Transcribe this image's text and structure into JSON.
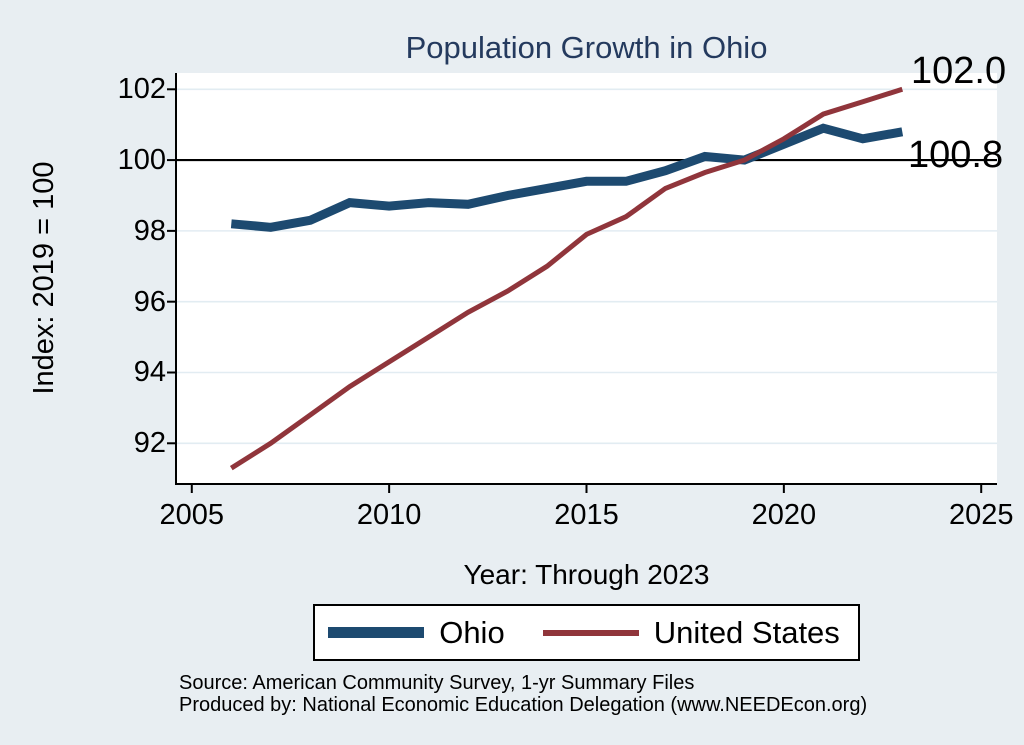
{
  "header": {
    "title": "Population Growth in Ohio"
  },
  "chart_data": {
    "type": "line",
    "title": "Population Growth in Ohio",
    "xlabel": "Year: Through 2023",
    "ylabel": "Index: 2019 = 100",
    "x": [
      2006,
      2007,
      2008,
      2009,
      2010,
      2011,
      2012,
      2013,
      2014,
      2015,
      2016,
      2017,
      2018,
      2019,
      2020,
      2021,
      2022,
      2023
    ],
    "series": [
      {
        "name": "Ohio",
        "color": "#1d4a70",
        "line_width": 9,
        "values": [
          98.2,
          98.1,
          98.3,
          98.8,
          98.7,
          98.8,
          98.75,
          99.0,
          99.2,
          99.4,
          99.4,
          99.7,
          100.1,
          100.0,
          100.45,
          100.9,
          100.6,
          100.8
        ]
      },
      {
        "name": "United States",
        "color": "#90353b",
        "line_width": 5,
        "values": [
          91.3,
          92.0,
          92.8,
          93.6,
          94.3,
          95.0,
          95.7,
          96.3,
          97.0,
          97.9,
          98.4,
          99.2,
          99.65,
          100.0,
          100.6,
          101.3,
          101.65,
          102.0
        ]
      }
    ],
    "x_ticks": [
      2005,
      2010,
      2015,
      2020,
      2025
    ],
    "y_ticks": [
      92,
      94,
      96,
      98,
      100,
      102
    ],
    "xlim": [
      2004.6,
      2025.4
    ],
    "ylim": [
      90.85,
      102.46
    ],
    "ref_line_y": 100,
    "grid": true,
    "legend_position": "bottom",
    "end_labels": [
      {
        "series": "United States",
        "text": "102.0",
        "value": 102.0,
        "year": 2023
      },
      {
        "series": "Ohio",
        "text": "100.8",
        "value": 100.8,
        "year": 2023
      }
    ]
  },
  "footer": {
    "source": "Source: American Community Survey, 1-yr Summary Files",
    "produced_by": "Produced by: National Economic Education Delegation (www.NEEDEcon.org)"
  },
  "colors": {
    "background": "#e8eef2",
    "plot_background": "#ffffff",
    "grid": "#e2ecf2",
    "axis": "#000000",
    "title": "#243a5e",
    "ohio_line": "#1d4a70",
    "us_line": "#90353b"
  }
}
